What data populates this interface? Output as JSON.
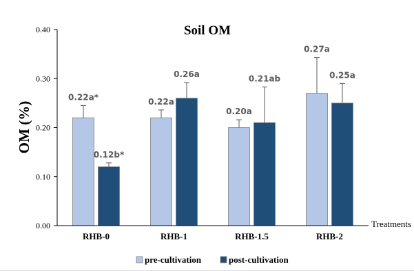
{
  "chart_data": {
    "type": "bar",
    "title": "Soil OM",
    "ylabel": "OM (%)",
    "xlabel": "Treatments",
    "ylim": [
      0,
      0.4
    ],
    "yticks": [
      "0.00",
      "0.10",
      "0.20",
      "0.30",
      "0.40"
    ],
    "categories": [
      "RHB-0",
      "RHB-1",
      "RHB-1.5",
      "RHB-2"
    ],
    "legend_position": "bottom",
    "grid": false,
    "series": [
      {
        "name": "pre-cultivation",
        "color": "#b4c7e7",
        "values": [
          0.22,
          0.22,
          0.2,
          0.27
        ],
        "errors": [
          0.025,
          0.016,
          0.016,
          0.073
        ],
        "labels": [
          "0.22a*",
          "0.22a",
          "0.20a",
          "0.27a"
        ]
      },
      {
        "name": "post-cultivation",
        "color": "#1f4e79",
        "values": [
          0.12,
          0.26,
          0.21,
          0.25
        ],
        "errors": [
          0.008,
          0.032,
          0.073,
          0.04
        ],
        "labels": [
          "0.12b*",
          "0.26a",
          "0.21ab",
          "0.25a"
        ]
      }
    ]
  }
}
